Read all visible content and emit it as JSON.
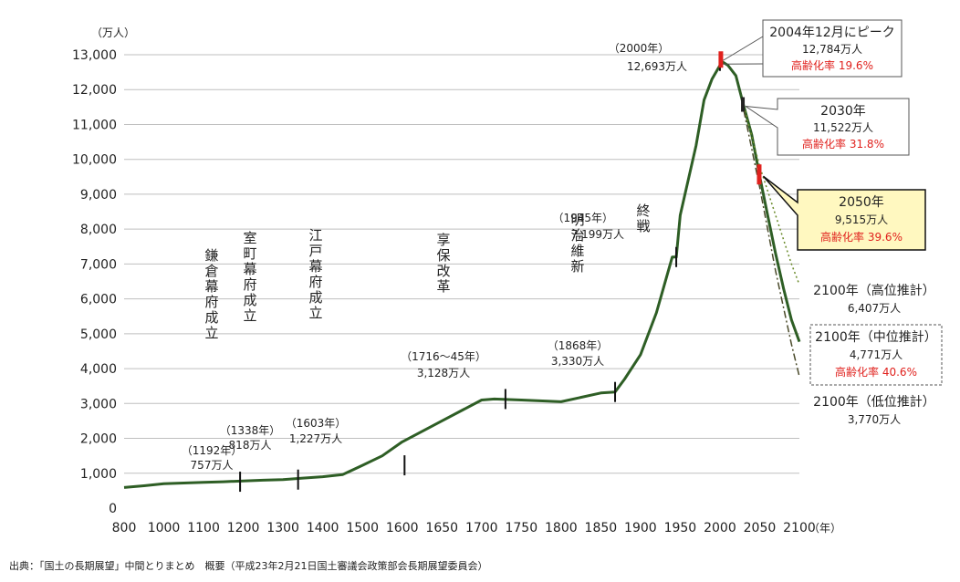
{
  "chart_data": {
    "type": "line",
    "ylabel": "（万人）",
    "xlabel": "（年）",
    "xlim": [
      800,
      2100
    ],
    "ylim": [
      0,
      13000
    ],
    "grid": true,
    "x_ticks": [
      "800",
      "1000",
      "1100",
      "1200",
      "1300",
      "1400",
      "1500",
      "1600",
      "1650",
      "1700",
      "1750",
      "1800",
      "1850",
      "1900",
      "1950",
      "2000",
      "2050",
      "2100"
    ],
    "y_ticks": [
      "0",
      "1,000",
      "2,000",
      "3,000",
      "4,000",
      "5,000",
      "6,000",
      "7,000",
      "8,000",
      "9,000",
      "10,000",
      "11,000",
      "12,000",
      "13,000"
    ],
    "series": [
      {
        "style": "solid",
        "points": [
          [
            800,
            590
          ],
          [
            900,
            640
          ],
          [
            1000,
            700
          ],
          [
            1100,
            740
          ],
          [
            1150,
            757
          ],
          [
            1200,
            780
          ],
          [
            1250,
            800
          ],
          [
            1300,
            818
          ],
          [
            1350,
            860
          ],
          [
            1400,
            900
          ],
          [
            1450,
            960
          ],
          [
            1500,
            1227
          ],
          [
            1550,
            1500
          ],
          [
            1600,
            1900
          ],
          [
            1650,
            2500
          ],
          [
            1700,
            3100
          ],
          [
            1716,
            3128
          ],
          [
            1750,
            3100
          ],
          [
            1800,
            3050
          ],
          [
            1850,
            3300
          ],
          [
            1868,
            3330
          ],
          [
            1880,
            3700
          ],
          [
            1900,
            4400
          ],
          [
            1920,
            5600
          ],
          [
            1930,
            6400
          ],
          [
            1940,
            7200
          ],
          [
            1945,
            7199
          ],
          [
            1950,
            8400
          ],
          [
            1970,
            10400
          ],
          [
            1980,
            11700
          ],
          [
            1990,
            12300
          ],
          [
            2000,
            12693
          ],
          [
            2004,
            12784
          ],
          [
            2010,
            12700
          ],
          [
            2020,
            12400
          ],
          [
            2030,
            11522
          ],
          [
            2040,
            10700
          ],
          [
            2050,
            9515
          ],
          [
            2060,
            8400
          ],
          [
            2070,
            7300
          ],
          [
            2080,
            6300
          ],
          [
            2090,
            5400
          ],
          [
            2100,
            4771
          ]
        ]
      },
      {
        "style": "dotted",
        "points": [
          [
            2030,
            11522
          ],
          [
            2050,
            9800
          ],
          [
            2070,
            8400
          ],
          [
            2090,
            7000
          ],
          [
            2100,
            6407
          ]
        ]
      },
      {
        "style": "dashdot",
        "points": [
          [
            2030,
            11400
          ],
          [
            2050,
            9200
          ],
          [
            2070,
            6800
          ],
          [
            2090,
            4700
          ],
          [
            2100,
            3770
          ]
        ]
      }
    ],
    "events": [
      {
        "label": "鎌倉幕府成立",
        "x": 1192,
        "y": 757,
        "year_label": "（1192年）",
        "value_label": "757万人"
      },
      {
        "label": "室町幕府成立",
        "x": 1338,
        "y": 818,
        "year_label": "（1338年）",
        "value_label": "818万人"
      },
      {
        "label": "江戸幕府成立",
        "x": 1603,
        "y": 1227,
        "year_label": "（1603年）",
        "value_label": "1,227万人"
      },
      {
        "label": "享保改革",
        "x": 1730,
        "y": 3128,
        "year_label": "（1716～45年）",
        "value_label": "3,128万人"
      },
      {
        "label": "明治維新",
        "x": 1868,
        "y": 3330,
        "year_label": "（1868年）",
        "value_label": "3,330万人"
      },
      {
        "label": "終戦",
        "x": 1945,
        "y": 7199,
        "year_label": "（1945年）",
        "value_label": "7,199万人"
      }
    ],
    "annotations": {
      "y2000": {
        "x": 2000,
        "y": 12693,
        "year": "（2000年）",
        "value": "12,693万人"
      },
      "peak": {
        "x": 2004,
        "y": 12784,
        "line1": "2004年12月にピーク",
        "line2": "12,784万人",
        "line3": "高齢化率 19.6%"
      },
      "y2030": {
        "x": 2030,
        "y": 11522,
        "line1": "2030年",
        "line2": "11,522万人",
        "line3": "高齢化率 31.8%"
      },
      "y2050": {
        "x": 2050,
        "y": 9515,
        "line1": "2050年",
        "line2": "9,515万人",
        "line3": "高齢化率 39.6%"
      },
      "high": {
        "line1": "2100年（高位推計）",
        "line2": "6,407万人"
      },
      "mid": {
        "line1": "2100年（中位推計）",
        "line2": "4,771万人",
        "line3": "高齢化率 40.6%"
      },
      "low": {
        "line1": "2100年（低位推計）",
        "line2": "3,770万人"
      }
    }
  },
  "footnote": "出典：「国土の長期展望」中間とりまとめ　概要（平成23年2月21日国土審議会政策部会長期展望委員会）"
}
